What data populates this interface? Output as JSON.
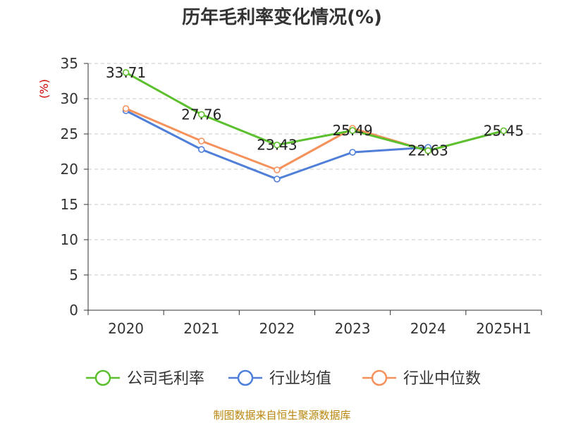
{
  "chart_data": {
    "type": "line",
    "title": "历年毛利率变化情况(%)",
    "xlabel": "",
    "ylabel": "(%)",
    "categories": [
      "2020",
      "2021",
      "2022",
      "2023",
      "2024",
      "2025H1"
    ],
    "ylim": [
      0,
      35
    ],
    "yticks": [
      "0",
      "5",
      "10",
      "15",
      "20",
      "25",
      "30",
      "35"
    ],
    "grid": true,
    "legend_position": "bottom",
    "series": [
      {
        "name": "公司毛利率",
        "color": "#5cc02e",
        "values": [
          33.71,
          27.76,
          23.43,
          25.49,
          22.63,
          25.45
        ],
        "labels": [
          "33.71",
          "27.76",
          "23.43",
          "25.49",
          "22.63",
          "25.45"
        ]
      },
      {
        "name": "行业均值",
        "color": "#4f7fd8",
        "values": [
          28.3,
          22.8,
          18.6,
          22.4,
          23.1,
          null
        ]
      },
      {
        "name": "行业中位数",
        "color": "#f5915a",
        "values": [
          28.6,
          24.0,
          19.9,
          25.8,
          22.6,
          null
        ]
      }
    ]
  },
  "footer": {
    "source": "制图数据来自恒生聚源数据库"
  }
}
